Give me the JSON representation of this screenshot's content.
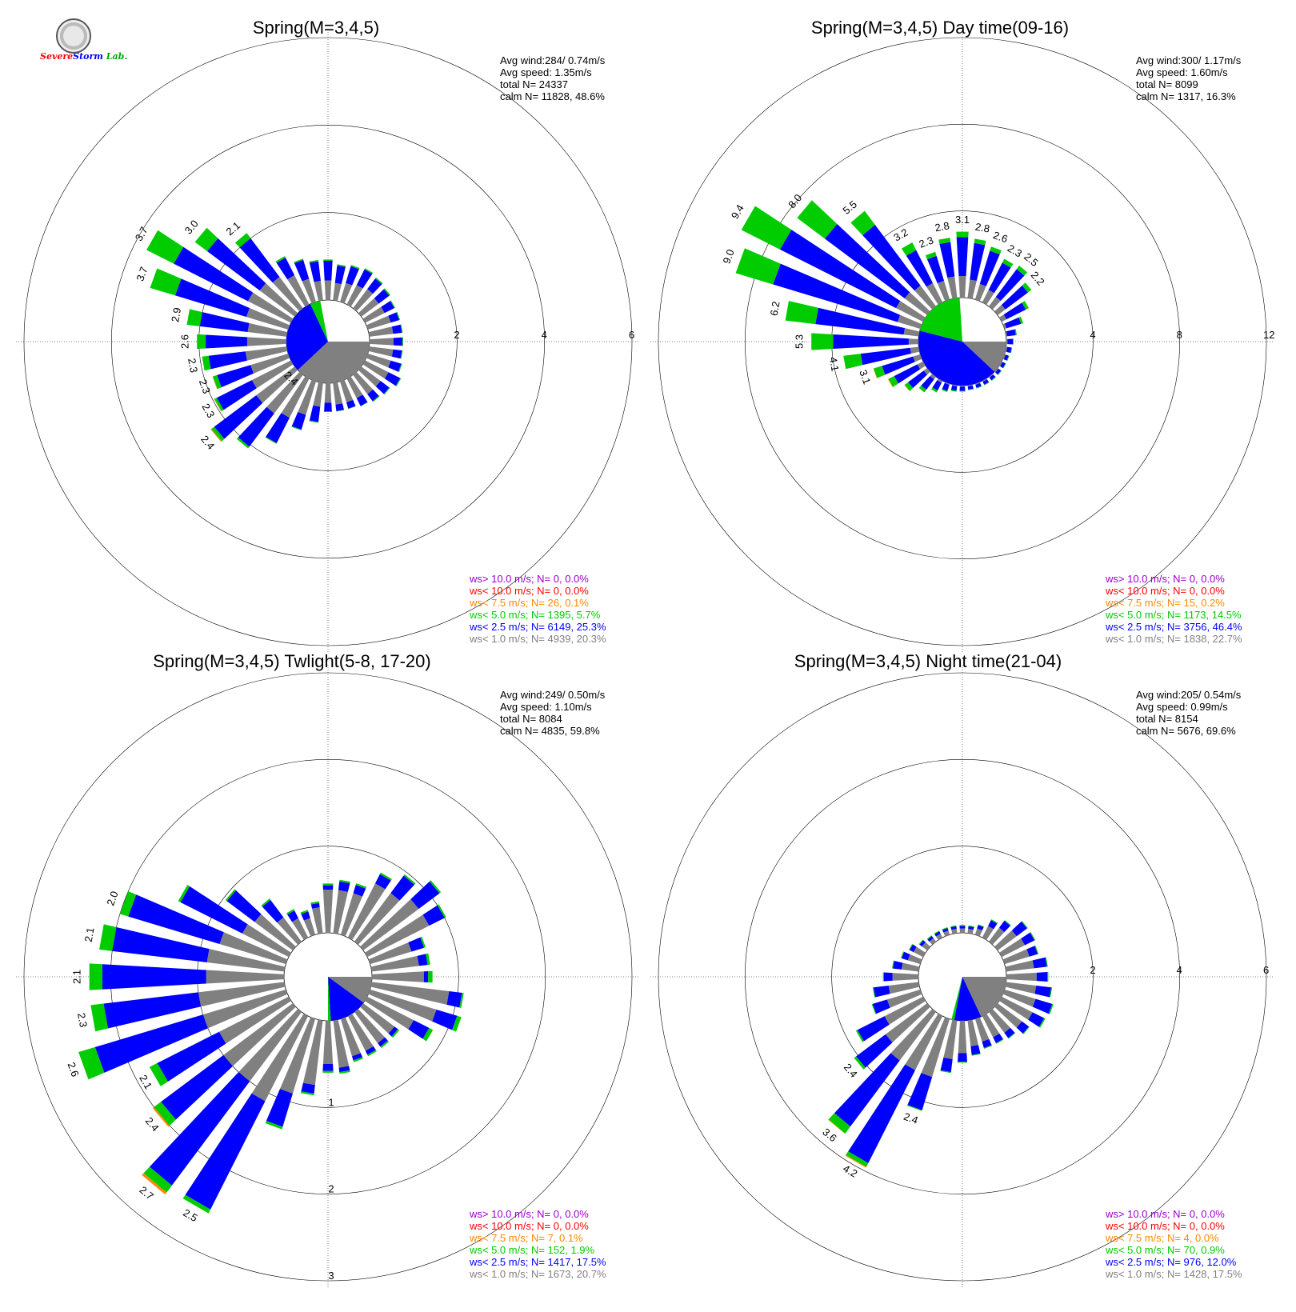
{
  "logo": {
    "text_parts": [
      "S",
      "evere",
      "S",
      "torm",
      " Lab."
    ],
    "colors": [
      "#ff0000",
      "#ff0000",
      "#0000ff",
      "#0000ff",
      "#00aa00"
    ]
  },
  "speed_class_colors": {
    "ws_gt_10": "#9900cc",
    "ws_lt_10": "#ff0000",
    "ws_lt_7_5": "#ff8800",
    "ws_lt_5": "#00cc00",
    "ws_lt_2_5": "#0000ff",
    "ws_lt_1": "#808080"
  },
  "chart_data": [
    {
      "type": "wind-rose",
      "title": "Spring(M=3,4,5)",
      "stats": [
        "Avg wind:284/ 0.74m/s",
        "Avg speed: 1.35m/s",
        "total N=      24337",
        "calm N=  11828,  48.6%"
      ],
      "ring_labels": [
        "2",
        "4",
        "6"
      ],
      "radial_max": 6,
      "calm_pie": [
        {
          "class": "lt1",
          "fraction": 0.38
        },
        {
          "class": "lt2_5",
          "fraction": 0.3
        },
        {
          "class": "lt5",
          "fraction": 0.04
        }
      ],
      "direction_labels": [
        {
          "dir": 225,
          "text": "2.4"
        },
        {
          "dir": 230,
          "text": "2.4"
        },
        {
          "dir": 240,
          "text": "2.3"
        },
        {
          "dir": 250,
          "text": "2.3"
        },
        {
          "dir": 260,
          "text": "2.3"
        },
        {
          "dir": 270,
          "text": "2.6"
        },
        {
          "dir": 280,
          "text": "2.9"
        },
        {
          "dir": 290,
          "text": "3.7"
        },
        {
          "dir": 300,
          "text": "3.7"
        },
        {
          "dir": 310,
          "text": "3.0"
        },
        {
          "dir": 320,
          "text": "2.1"
        }
      ],
      "directions_deg": [
        0,
        10,
        20,
        30,
        40,
        50,
        60,
        70,
        80,
        90,
        100,
        110,
        120,
        130,
        140,
        150,
        160,
        170,
        180,
        190,
        200,
        210,
        220,
        230,
        240,
        250,
        260,
        270,
        280,
        290,
        300,
        310,
        320,
        330,
        340,
        350
      ],
      "percent_by_direction": {
        "lt1": [
          0.45,
          0.4,
          0.45,
          0.5,
          0.55,
          0.5,
          0.5,
          0.55,
          0.55,
          0.55,
          0.55,
          0.55,
          0.6,
          0.55,
          0.55,
          0.5,
          0.5,
          0.5,
          0.45,
          0.55,
          0.8,
          1.0,
          1.1,
          1.1,
          1.0,
          0.9,
          0.95,
          0.9,
          0.9,
          1.0,
          1.1,
          1.0,
          0.9,
          0.75,
          0.55,
          0.45
        ],
        "lt2_5": [
          0.45,
          0.4,
          0.4,
          0.4,
          0.3,
          0.3,
          0.25,
          0.2,
          0.2,
          0.2,
          0.2,
          0.25,
          0.3,
          0.25,
          0.2,
          0.2,
          0.15,
          0.15,
          0.2,
          0.35,
          0.35,
          0.65,
          0.95,
          1.2,
          0.9,
          0.8,
          0.85,
          0.95,
          1.1,
          1.7,
          1.9,
          1.5,
          1.1,
          0.45,
          0.45,
          0.45
        ],
        "lt5": [
          0.03,
          0.03,
          0.03,
          0.03,
          0.03,
          0.03,
          0.02,
          0.02,
          0.02,
          0.02,
          0.02,
          0.02,
          0.02,
          0.02,
          0.02,
          0.01,
          0.01,
          0.01,
          0.01,
          0.02,
          0.02,
          0.02,
          0.05,
          0.08,
          0.06,
          0.1,
          0.15,
          0.2,
          0.3,
          0.6,
          0.7,
          0.35,
          0.15,
          0.04,
          0.03,
          0.03
        ],
        "lt7_5": [
          0,
          0,
          0,
          0,
          0,
          0,
          0,
          0,
          0,
          0,
          0,
          0,
          0,
          0,
          0,
          0,
          0,
          0,
          0,
          0,
          0,
          0,
          0,
          0.02,
          0.01,
          0.01,
          0,
          0,
          0,
          0,
          0,
          0,
          0,
          0,
          0,
          0
        ]
      },
      "legend": [
        {
          "class": "gt10",
          "text": "ws> 10.0 m/s; N=     0,  0.0%"
        },
        {
          "class": "lt10",
          "text": "ws< 10.0 m/s; N=     0,  0.0%"
        },
        {
          "class": "lt7_5",
          "text": "ws<  7.5 m/s; N=    26,  0.1%"
        },
        {
          "class": "lt5",
          "text": "ws<  5.0 m/s; N=  1395,  5.7%"
        },
        {
          "class": "lt2_5",
          "text": "ws<  2.5 m/s; N=  6149, 25.3%"
        },
        {
          "class": "lt1",
          "text": "ws<  1.0 m/s; N=  4939, 20.3%"
        }
      ]
    },
    {
      "type": "wind-rose",
      "title": "Spring(M=3,4,5) Day time(09-16)",
      "stats": [
        "Avg wind:300/ 1.17m/s",
        "Avg speed: 1.60m/s",
        "total N=       8099",
        "calm N=   1317,  16.3%"
      ],
      "ring_labels": [
        "4",
        "8",
        "12"
      ],
      "radial_max": 12,
      "calm_pie": [
        {
          "class": "lt1",
          "fraction": 0.12
        },
        {
          "class": "lt2_5",
          "fraction": 0.42
        },
        {
          "class": "lt5",
          "fraction": 0.2
        }
      ],
      "direction_labels": [
        {
          "dir": 250,
          "text": "3.1"
        },
        {
          "dir": 260,
          "text": "4.1"
        },
        {
          "dir": 270,
          "text": "5.3"
        },
        {
          "dir": 280,
          "text": "6.2"
        },
        {
          "dir": 290,
          "text": "9.0"
        },
        {
          "dir": 300,
          "text": "9.4"
        },
        {
          "dir": 310,
          "text": "8.0"
        },
        {
          "dir": 320,
          "text": "5.5"
        },
        {
          "dir": 330,
          "text": "3.2"
        },
        {
          "dir": 340,
          "text": "2.3"
        },
        {
          "dir": 350,
          "text": "2.8"
        },
        {
          "dir": 0,
          "text": "3.1"
        },
        {
          "dir": 10,
          "text": "2.8"
        },
        {
          "dir": 20,
          "text": "2.6"
        },
        {
          "dir": 30,
          "text": "2.3"
        },
        {
          "dir": 40,
          "text": "2.5"
        },
        {
          "dir": 50,
          "text": "2.2"
        }
      ],
      "directions_deg": [
        0,
        10,
        20,
        30,
        40,
        50,
        60,
        70,
        80,
        90,
        100,
        110,
        120,
        130,
        140,
        150,
        160,
        170,
        180,
        190,
        200,
        210,
        220,
        230,
        240,
        250,
        260,
        270,
        280,
        290,
        300,
        310,
        320,
        330,
        340,
        350
      ],
      "percent_by_direction": {
        "lt1": [
          1.0,
          0.85,
          0.75,
          0.65,
          0.55,
          0.45,
          0.25,
          0.1,
          0.05,
          0.05,
          0.05,
          0.05,
          0.05,
          0.05,
          0.05,
          0.05,
          0.05,
          0.05,
          0.05,
          0.05,
          0.05,
          0.1,
          0.15,
          0.2,
          0.3,
          0.35,
          0.4,
          0.45,
          0.7,
          1.1,
          1.4,
          1.3,
          1.2,
          1.0,
          0.9,
          1.0
        ],
        "lt2_5": [
          1.8,
          1.7,
          1.6,
          1.4,
          1.6,
          1.3,
          1.0,
          0.7,
          0.4,
          0.25,
          0.2,
          0.15,
          0.15,
          0.15,
          0.15,
          0.15,
          0.15,
          0.15,
          0.2,
          0.2,
          0.3,
          0.4,
          0.6,
          0.9,
          1.2,
          1.5,
          2.3,
          3.5,
          4.1,
          6.0,
          6.0,
          4.6,
          3.5,
          1.7,
          1.2,
          1.6
        ],
        "lt5": [
          0.25,
          0.2,
          0.2,
          0.2,
          0.2,
          0.2,
          0.15,
          0.1,
          0.05,
          0.03,
          0.03,
          0.03,
          0.03,
          0.03,
          0.03,
          0.03,
          0.03,
          0.03,
          0.03,
          0.05,
          0.05,
          0.1,
          0.15,
          0.2,
          0.3,
          0.4,
          0.8,
          1.0,
          1.4,
          1.8,
          2.0,
          1.6,
          0.8,
          0.4,
          0.2,
          0.2
        ],
        "lt7_5": [
          0,
          0,
          0,
          0,
          0,
          0,
          0,
          0,
          0,
          0,
          0,
          0,
          0,
          0,
          0,
          0,
          0,
          0,
          0,
          0,
          0,
          0,
          0,
          0.02,
          0.02,
          0.02,
          0,
          0,
          0,
          0,
          0,
          0,
          0,
          0,
          0,
          0
        ]
      },
      "legend": [
        {
          "class": "gt10",
          "text": "ws> 10.0 m/s; N=     0,  0.0%"
        },
        {
          "class": "lt10",
          "text": "ws< 10.0 m/s; N=     0,  0.0%"
        },
        {
          "class": "lt7_5",
          "text": "ws<  7.5 m/s; N=    15,  0.2%"
        },
        {
          "class": "lt5",
          "text": "ws<  5.0 m/s; N=  1173, 14.5%"
        },
        {
          "class": "lt2_5",
          "text": "ws<  2.5 m/s; N=  3756, 46.4%"
        },
        {
          "class": "lt1",
          "text": "ws<  1.0 m/s; N=  1838, 22.7%"
        }
      ]
    },
    {
      "type": "wind-rose",
      "title": "Spring(M=3,4,5) Twlight(5-8, 17-20)",
      "stats": [
        "Avg wind:249/ 0.50m/s",
        "Avg speed: 1.10m/s",
        "total N=       8084",
        "calm N=   4835,  59.8%"
      ],
      "ring_labels": [
        "1",
        "2",
        "3"
      ],
      "ring_label_position": "south",
      "radial_max": 3,
      "calm_pie": [
        {
          "class": "lt1",
          "fraction": 0.1
        },
        {
          "class": "lt2_5",
          "fraction": 0.14
        },
        {
          "class": "lt5",
          "fraction": 0.01
        }
      ],
      "direction_labels": [
        {
          "dir": 210,
          "text": "2.5"
        },
        {
          "dir": 220,
          "text": "2.7"
        },
        {
          "dir": 230,
          "text": "2.4"
        },
        {
          "dir": 240,
          "text": "2.1"
        },
        {
          "dir": 250,
          "text": "2.6"
        },
        {
          "dir": 260,
          "text": "2.3"
        },
        {
          "dir": 270,
          "text": "2.1"
        },
        {
          "dir": 280,
          "text": "2.1"
        },
        {
          "dir": 290,
          "text": "2.0"
        }
      ],
      "directions_deg": [
        0,
        10,
        20,
        30,
        40,
        50,
        60,
        70,
        80,
        90,
        100,
        110,
        120,
        130,
        140,
        150,
        160,
        170,
        180,
        190,
        200,
        210,
        220,
        230,
        240,
        250,
        260,
        270,
        280,
        290,
        300,
        310,
        320,
        330,
        340,
        350
      ],
      "percent_by_direction": {
        "lt1": [
          0.5,
          0.5,
          0.5,
          0.7,
          0.7,
          0.8,
          0.8,
          0.5,
          0.55,
          0.6,
          0.9,
          0.8,
          0.6,
          0.45,
          0.45,
          0.45,
          0.45,
          0.55,
          0.5,
          0.75,
          0.9,
          1.1,
          1.0,
          1.0,
          0.9,
          1.0,
          1.0,
          0.9,
          0.9,
          0.8,
          0.6,
          0.55,
          0.35,
          0.25,
          0.2,
          0.3
        ],
        "lt2_5": [
          0.05,
          0.1,
          0.1,
          0.12,
          0.25,
          0.3,
          0.2,
          0.15,
          0.1,
          0.05,
          0.15,
          0.25,
          0.2,
          0.05,
          0.05,
          0.05,
          0.05,
          0.05,
          0.08,
          0.1,
          0.4,
          1.4,
          1.5,
          0.9,
          0.8,
          1.3,
          1.1,
          1.2,
          1.1,
          1.1,
          0.8,
          0.4,
          0.25,
          0.1,
          0.08,
          0.05
        ],
        "lt5": [
          0.02,
          0.02,
          0.02,
          0.02,
          0.02,
          0.02,
          0.02,
          0.02,
          0.03,
          0.05,
          0.02,
          0.05,
          0.05,
          0.02,
          0.02,
          0.02,
          0.02,
          0.02,
          0.02,
          0.02,
          0.03,
          0.05,
          0.1,
          0.1,
          0.1,
          0.2,
          0.15,
          0.15,
          0.15,
          0.1,
          0.03,
          0.02,
          0.02,
          0.02,
          0.02,
          0.02
        ],
        "lt7_5": [
          0,
          0,
          0,
          0,
          0,
          0,
          0,
          0,
          0,
          0,
          0,
          0,
          0,
          0,
          0,
          0,
          0,
          0,
          0,
          0,
          0,
          0,
          0.03,
          0.02,
          0,
          0,
          0,
          0,
          0,
          0,
          0,
          0,
          0,
          0,
          0,
          0
        ]
      },
      "legend": [
        {
          "class": "gt10",
          "text": "ws> 10.0 m/s; N=     0,  0.0%"
        },
        {
          "class": "lt10",
          "text": "ws< 10.0 m/s; N=     0,  0.0%"
        },
        {
          "class": "lt7_5",
          "text": "ws<  7.5 m/s; N=     7,  0.1%"
        },
        {
          "class": "lt5",
          "text": "ws<  5.0 m/s; N=   152,  1.9%"
        },
        {
          "class": "lt2_5",
          "text": "ws<  2.5 m/s; N=  1417, 17.5%"
        },
        {
          "class": "lt1",
          "text": "ws<  1.0 m/s; N=  1673, 20.7%"
        }
      ]
    },
    {
      "type": "wind-rose",
      "title": "Spring(M=3,4,5) Night time(21-04)",
      "stats": [
        "Avg wind:205/ 0.54m/s",
        "Avg speed: 0.99m/s",
        "total N=       8154",
        "calm N=   5676,  69.6%"
      ],
      "ring_labels": [
        "2",
        "4",
        "6"
      ],
      "radial_max": 6,
      "calm_pie": [
        {
          "class": "lt1",
          "fraction": 0.18
        },
        {
          "class": "lt2_5",
          "fraction": 0.1
        },
        {
          "class": "lt5",
          "fraction": 0.01
        }
      ],
      "direction_labels": [
        {
          "dir": 200,
          "text": "2.4"
        },
        {
          "dir": 210,
          "text": "4.2"
        },
        {
          "dir": 220,
          "text": "3.6"
        },
        {
          "dir": 230,
          "text": "2.4"
        }
      ],
      "directions_deg": [
        0,
        10,
        20,
        30,
        40,
        50,
        60,
        70,
        80,
        90,
        100,
        110,
        120,
        130,
        140,
        150,
        160,
        170,
        180,
        190,
        200,
        210,
        220,
        230,
        240,
        250,
        260,
        270,
        280,
        290,
        300,
        310,
        320,
        330,
        340,
        350
      ],
      "percent_by_direction": {
        "lt1": [
          0.1,
          0.1,
          0.15,
          0.3,
          0.4,
          0.55,
          0.6,
          0.6,
          0.65,
          0.7,
          0.7,
          0.75,
          0.8,
          0.7,
          0.6,
          0.55,
          0.55,
          0.6,
          0.75,
          0.9,
          1.4,
          1.4,
          1.4,
          1.2,
          1.0,
          0.8,
          0.7,
          0.6,
          0.4,
          0.3,
          0.25,
          0.15,
          0.1,
          0.1,
          0.1,
          0.1
        ],
        "lt2_5": [
          0.06,
          0.06,
          0.08,
          0.15,
          0.2,
          0.3,
          0.25,
          0.2,
          0.3,
          0.25,
          0.35,
          0.4,
          0.3,
          0.2,
          0.15,
          0.15,
          0.15,
          0.2,
          0.2,
          0.3,
          0.8,
          2.4,
          1.9,
          0.85,
          0.7,
          0.35,
          0.35,
          0.2,
          0.2,
          0.15,
          0.1,
          0.07,
          0.06,
          0.06,
          0.06,
          0.06
        ],
        "lt5": [
          0.02,
          0.02,
          0.02,
          0.02,
          0.02,
          0.02,
          0.02,
          0.02,
          0.02,
          0.02,
          0.02,
          0.03,
          0.03,
          0.02,
          0.02,
          0.02,
          0.02,
          0.02,
          0.02,
          0.02,
          0.02,
          0.1,
          0.2,
          0.06,
          0.04,
          0.02,
          0.02,
          0.02,
          0.02,
          0.02,
          0.02,
          0.02,
          0.02,
          0.02,
          0.02,
          0.02
        ],
        "lt7_5": [
          0,
          0,
          0,
          0,
          0,
          0,
          0,
          0,
          0,
          0,
          0,
          0,
          0,
          0,
          0,
          0,
          0,
          0,
          0,
          0,
          0,
          0.02,
          0.01,
          0,
          0,
          0,
          0,
          0,
          0,
          0,
          0,
          0,
          0,
          0,
          0,
          0
        ]
      },
      "legend": [
        {
          "class": "gt10",
          "text": "ws> 10.0 m/s; N=     0,  0.0%"
        },
        {
          "class": "lt10",
          "text": "ws< 10.0 m/s; N=     0,  0.0%"
        },
        {
          "class": "lt7_5",
          "text": "ws<  7.5 m/s; N=     4,  0.0%"
        },
        {
          "class": "lt5",
          "text": "ws<  5.0 m/s; N=    70,  0.9%"
        },
        {
          "class": "lt2_5",
          "text": "ws<  2.5 m/s; N=   976, 12.0%"
        },
        {
          "class": "lt1",
          "text": "ws<  1.0 m/s; N=  1428, 17.5%"
        }
      ]
    }
  ]
}
